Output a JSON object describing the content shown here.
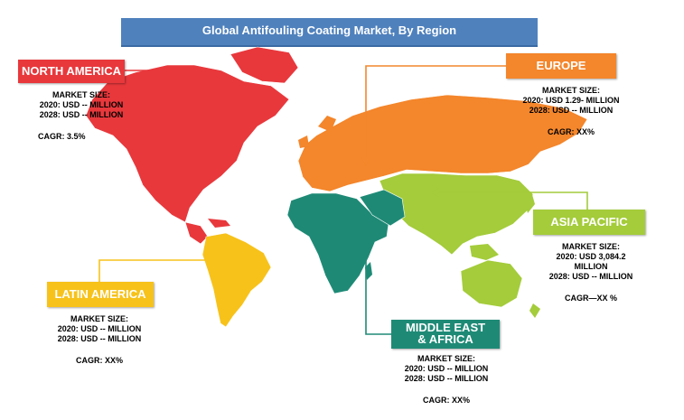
{
  "title": "Global Antifouling Coating Market, By Region",
  "colors": {
    "north_america": "#e8383c",
    "europe": "#f4862b",
    "asia_pacific": "#a4cc3b",
    "middle_east_africa": "#1e8a76",
    "latin_america": "#f7c21a",
    "title_bar": "#4f81bd"
  },
  "regions": {
    "north_america": {
      "name": "NORTH AMERICA",
      "size_label": "MARKET SIZE:",
      "line_2020": "2020: USD -- MILLION",
      "line_2028": "2028: USD -- MILLION",
      "cagr": "CAGR: 3.5%"
    },
    "europe": {
      "name": "EUROPE",
      "size_label": "MARKET SIZE:",
      "line_2020": "2020: USD 1.29- MILLION",
      "line_2028": "2028: USD -- MILLION",
      "cagr": "CAGR: XX%"
    },
    "asia_pacific": {
      "name": "ASIA PACIFIC",
      "size_label": "MARKET SIZE:",
      "line_2020a": "2020: USD  3,084.2",
      "line_2020b": "MILLION",
      "line_2028": "2028: USD -- MILLION",
      "cagr": "CAGR—XX    %"
    },
    "latin_america": {
      "name": "LATIN AMERICA",
      "size_label": "MARKET SIZE:",
      "line_2020": "2020: USD -- MILLION",
      "line_2028": "2028: USD -- MILLION",
      "cagr": "CAGR: XX%"
    },
    "middle_east_africa": {
      "name_line1": "MIDDLE EAST",
      "name_line2": "& AFRICA",
      "size_label": "MARKET SIZE:",
      "line_2020": "2020: USD -- MILLION",
      "line_2028": "2028: USD -- MILLION",
      "cagr": "CAGR: XX%"
    }
  }
}
